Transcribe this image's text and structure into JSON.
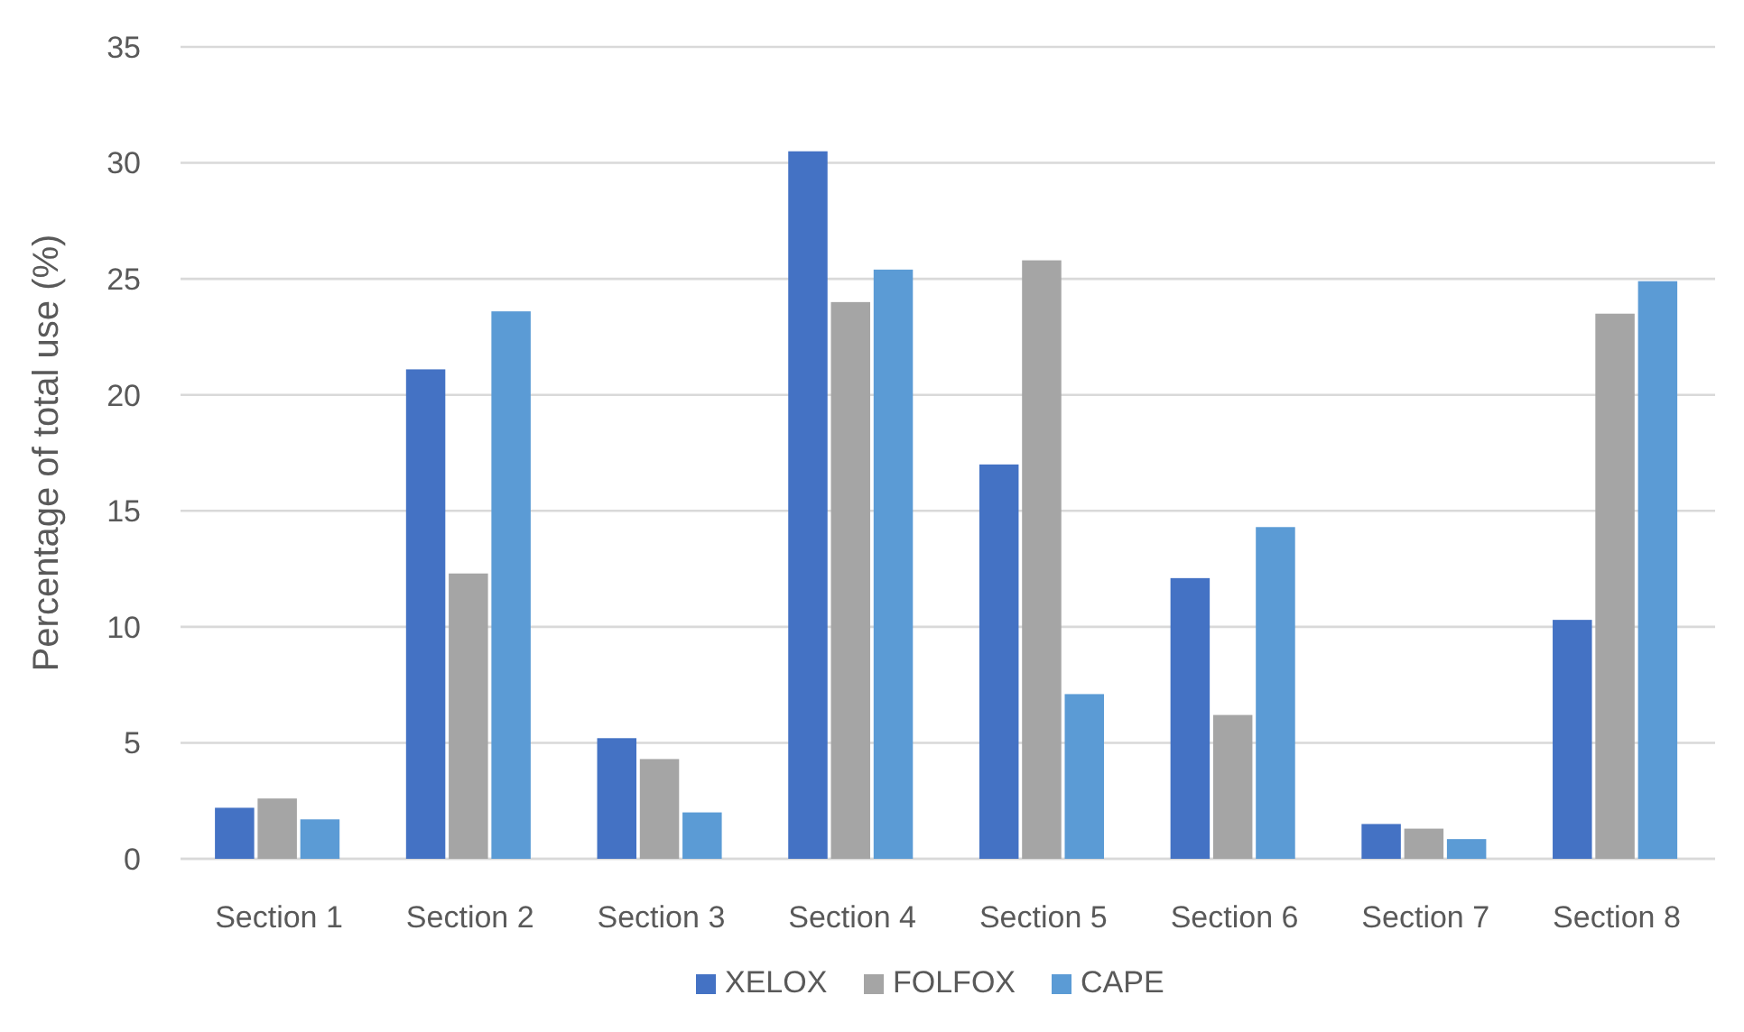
{
  "chart_data": {
    "type": "bar",
    "ylabel": "Percentage of total use (%)",
    "categories": [
      "Section 1",
      "Section 2",
      "Section 3",
      "Section 4",
      "Section 5",
      "Section 6",
      "Section 7",
      "Section 8"
    ],
    "series": [
      {
        "name": "XELOX",
        "color": "#4472c4",
        "values": [
          2.2,
          21.1,
          5.2,
          30.5,
          17.0,
          12.1,
          1.5,
          10.3
        ]
      },
      {
        "name": "FOLFOX",
        "color": "#a5a5a5",
        "values": [
          2.6,
          12.3,
          4.3,
          24.0,
          25.8,
          6.2,
          1.3,
          23.5
        ]
      },
      {
        "name": "CAPE",
        "color": "#5b9bd5",
        "values": [
          1.7,
          23.6,
          2.0,
          25.4,
          7.1,
          14.3,
          0.85,
          24.9
        ]
      }
    ],
    "ylim": [
      0,
      35
    ],
    "yticks": [
      0,
      5,
      10,
      15,
      20,
      25,
      30,
      35
    ],
    "grid": "y",
    "legend": "bottom"
  }
}
